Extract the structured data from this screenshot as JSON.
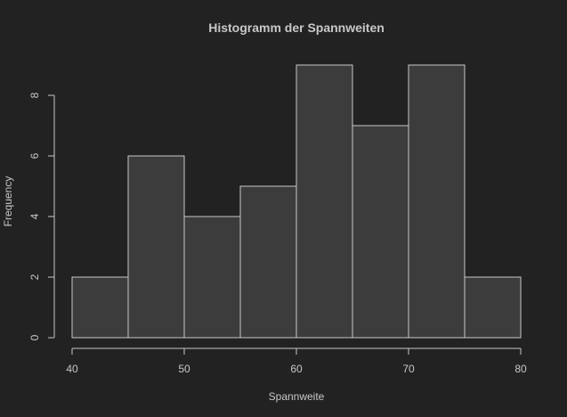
{
  "colors": {
    "background": "#222222",
    "bar_fill": "#3c3c3c",
    "foreground": "#c8c8c8"
  },
  "chart_data": {
    "type": "bar",
    "title": "Histogramm der Spannweiten",
    "xlabel": "Spannweite",
    "ylabel": "Frequency",
    "bins": [
      {
        "start": 40,
        "end": 45,
        "count": 2
      },
      {
        "start": 45,
        "end": 50,
        "count": 6
      },
      {
        "start": 50,
        "end": 55,
        "count": 4
      },
      {
        "start": 55,
        "end": 60,
        "count": 5
      },
      {
        "start": 60,
        "end": 65,
        "count": 9
      },
      {
        "start": 65,
        "end": 70,
        "count": 7
      },
      {
        "start": 70,
        "end": 75,
        "count": 9
      },
      {
        "start": 75,
        "end": 80,
        "count": 2
      }
    ],
    "xlim": [
      40,
      80
    ],
    "ylim": [
      0,
      8
    ],
    "x_ticks": [
      "40",
      "50",
      "60",
      "70",
      "80"
    ],
    "y_ticks": [
      "0",
      "2",
      "4",
      "6",
      "8"
    ],
    "grid": false
  }
}
